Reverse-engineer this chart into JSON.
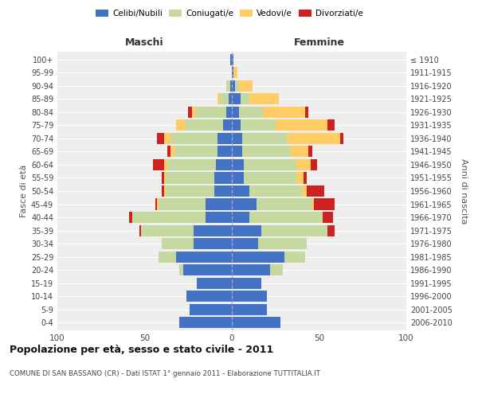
{
  "age_groups": [
    "0-4",
    "5-9",
    "10-14",
    "15-19",
    "20-24",
    "25-29",
    "30-34",
    "35-39",
    "40-44",
    "45-49",
    "50-54",
    "55-59",
    "60-64",
    "65-69",
    "70-74",
    "75-79",
    "80-84",
    "85-89",
    "90-94",
    "95-99",
    "100+"
  ],
  "birth_years": [
    "2006-2010",
    "2001-2005",
    "1996-2000",
    "1991-1995",
    "1986-1990",
    "1981-1985",
    "1976-1980",
    "1971-1975",
    "1966-1970",
    "1961-1965",
    "1956-1960",
    "1951-1955",
    "1946-1950",
    "1941-1945",
    "1936-1940",
    "1931-1935",
    "1926-1930",
    "1921-1925",
    "1916-1920",
    "1911-1915",
    "≤ 1910"
  ],
  "maschi": {
    "celibi": [
      30,
      24,
      26,
      20,
      28,
      32,
      22,
      22,
      15,
      15,
      10,
      10,
      9,
      8,
      8,
      5,
      3,
      2,
      1,
      0,
      1
    ],
    "coniugati": [
      0,
      0,
      0,
      0,
      2,
      10,
      18,
      30,
      42,
      27,
      28,
      28,
      28,
      25,
      27,
      22,
      18,
      5,
      2,
      0,
      0
    ],
    "vedovi": [
      0,
      0,
      0,
      0,
      0,
      0,
      0,
      0,
      0,
      1,
      1,
      1,
      2,
      2,
      4,
      5,
      2,
      1,
      0,
      0,
      0
    ],
    "divorziati": [
      0,
      0,
      0,
      0,
      0,
      0,
      0,
      1,
      2,
      1,
      1,
      1,
      6,
      2,
      4,
      0,
      2,
      0,
      0,
      0,
      0
    ]
  },
  "femmine": {
    "nubili": [
      28,
      20,
      20,
      17,
      22,
      30,
      15,
      17,
      10,
      14,
      10,
      7,
      7,
      6,
      6,
      5,
      4,
      5,
      2,
      1,
      1
    ],
    "coniugate": [
      0,
      0,
      0,
      0,
      7,
      12,
      28,
      38,
      42,
      32,
      30,
      30,
      30,
      28,
      26,
      20,
      14,
      5,
      2,
      0,
      0
    ],
    "vedove": [
      0,
      0,
      0,
      0,
      0,
      0,
      0,
      0,
      0,
      1,
      3,
      4,
      8,
      10,
      30,
      30,
      24,
      17,
      8,
      2,
      0
    ],
    "divorziate": [
      0,
      0,
      0,
      0,
      0,
      0,
      0,
      4,
      6,
      12,
      10,
      2,
      4,
      2,
      2,
      4,
      2,
      0,
      0,
      0,
      0
    ]
  },
  "colors": {
    "celibi": "#4472C4",
    "coniugati": "#C5D9A0",
    "vedovi": "#FFCC66",
    "divorziati": "#CC2222"
  },
  "title": "Popolazione per età, sesso e stato civile - 2011",
  "subtitle": "COMUNE DI SAN BASSANO (CR) - Dati ISTAT 1° gennaio 2011 - Elaborazione TUTTITALIA.IT",
  "xlabel_left": "Maschi",
  "xlabel_right": "Femmine",
  "ylabel_left": "Fasce di età",
  "ylabel_right": "Anni di nascita",
  "xlim": 100,
  "bg_axes": "#eeeeee",
  "bg_fig": "#ffffff",
  "grid_color": "#ffffff",
  "legend_circle_colors": [
    "#4472C4",
    "#C5D9A0",
    "#FFCC66",
    "#CC2222"
  ],
  "legend_labels": [
    "Celibi/Nubili",
    "Coniugati/e",
    "Vedovi/e",
    "Divorziati/e"
  ]
}
